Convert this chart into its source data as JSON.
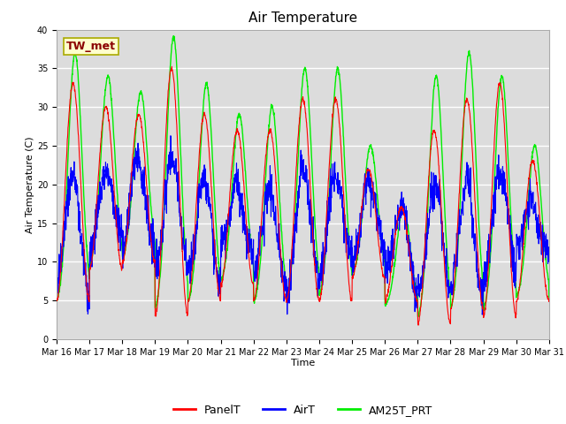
{
  "title": "Air Temperature",
  "xlabel": "Time",
  "ylabel": "Air Temperature (C)",
  "ylim": [
    0,
    40
  ],
  "background_color": "#dcdcdc",
  "grid_color": "white",
  "annotation_text": "TW_met",
  "annotation_box_color": "#ffffcc",
  "annotation_text_color": "#8b0000",
  "annotation_edge_color": "#aaaa00",
  "series_PanelT_color": "red",
  "series_AirT_color": "blue",
  "series_AM25T_color": "#00ee00",
  "series_PanelT_lw": 0.8,
  "series_AirT_lw": 0.8,
  "series_AM25T_lw": 1.0,
  "tick_label_fontsize": 7,
  "legend_fontsize": 9,
  "title_fontsize": 11,
  "daily_mins_panelT": [
    5,
    9,
    10,
    3,
    5,
    7,
    5,
    5,
    5,
    8,
    5,
    2,
    4,
    3,
    5
  ],
  "daily_maxs_panelT": [
    33,
    30,
    29,
    35,
    29,
    27,
    27,
    31,
    31,
    22,
    17,
    27,
    31,
    33,
    23
  ],
  "daily_mins_airT": [
    7,
    12,
    12,
    9,
    8,
    11,
    8,
    7,
    9,
    11,
    7,
    6,
    6,
    8,
    12
  ],
  "daily_maxs_airT": [
    21,
    22,
    23,
    24,
    20,
    20,
    19,
    22,
    22,
    20,
    17,
    20,
    20,
    22,
    17
  ],
  "daily_mins_green": [
    4,
    9,
    10,
    3,
    4,
    7,
    4,
    5,
    5,
    8,
    4,
    2,
    3,
    3,
    5
  ],
  "daily_maxs_green": [
    37,
    34,
    32,
    39,
    33,
    29,
    30,
    35,
    35,
    25,
    17,
    34,
    37,
    34,
    25
  ]
}
